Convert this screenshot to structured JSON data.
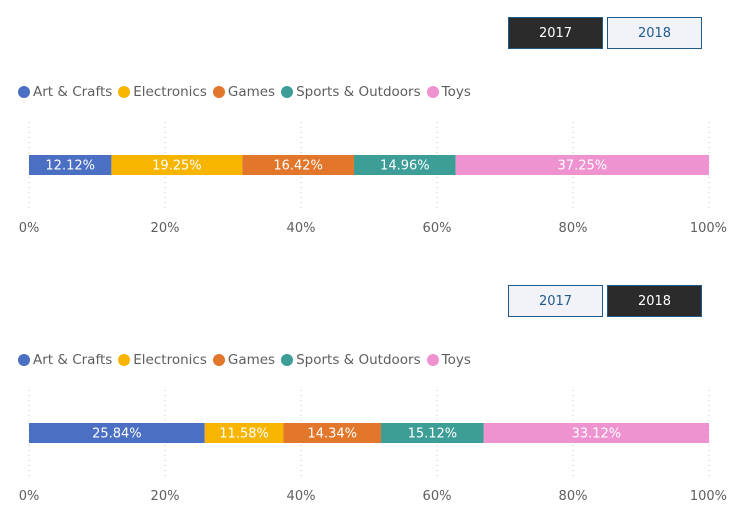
{
  "buttons": [
    "2017",
    "2018"
  ],
  "charts": [
    {
      "selected": "2017",
      "chart_data": {
        "type": "bar",
        "stacked": true,
        "orientation": "horizontal",
        "series": [
          {
            "name": "Art & Crafts",
            "value": 12.12,
            "label": "12.12%",
            "color": "#4a6fc3"
          },
          {
            "name": "Electronics",
            "value": 19.25,
            "label": "19.25%",
            "color": "#f7b500"
          },
          {
            "name": "Games",
            "value": 16.42,
            "label": "16.42%",
            "color": "#e2772c"
          },
          {
            "name": "Sports & Outdoors",
            "value": 14.96,
            "label": "14.96%",
            "color": "#3d9e98"
          },
          {
            "name": "Toys",
            "value": 37.25,
            "label": "37.25%",
            "color": "#ee93cf"
          }
        ],
        "xticks": [
          "0%",
          "20%",
          "40%",
          "60%",
          "80%",
          "100%"
        ],
        "xlim": [
          0,
          100
        ],
        "legend": "top-left",
        "grid": "vertical-dotted"
      }
    },
    {
      "selected": "2018",
      "chart_data": {
        "type": "bar",
        "stacked": true,
        "orientation": "horizontal",
        "series": [
          {
            "name": "Art & Crafts",
            "value": 25.84,
            "label": "25.84%",
            "color": "#4a6fc3"
          },
          {
            "name": "Electronics",
            "value": 11.58,
            "label": "11.58%",
            "color": "#f7b500"
          },
          {
            "name": "Games",
            "value": 14.34,
            "label": "14.34%",
            "color": "#e2772c"
          },
          {
            "name": "Sports & Outdoors",
            "value": 15.12,
            "label": "15.12%",
            "color": "#3d9e98"
          },
          {
            "name": "Toys",
            "value": 33.12,
            "label": "33.12%",
            "color": "#ee93cf"
          }
        ],
        "xticks": [
          "0%",
          "20%",
          "40%",
          "60%",
          "80%",
          "100%"
        ],
        "xlim": [
          0,
          100
        ],
        "legend": "top-left",
        "grid": "vertical-dotted"
      }
    }
  ]
}
